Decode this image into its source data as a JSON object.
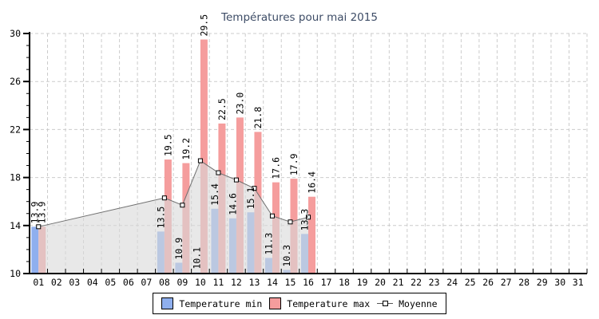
{
  "chart_data": {
    "type": "bar",
    "title": "Températures pour mai 2015",
    "x_labels": [
      "01",
      "02",
      "03",
      "04",
      "05",
      "06",
      "07",
      "08",
      "09",
      "10",
      "11",
      "12",
      "13",
      "14",
      "15",
      "16",
      "17",
      "18",
      "19",
      "20",
      "21",
      "22",
      "23",
      "24",
      "25",
      "26",
      "27",
      "28",
      "29",
      "30",
      "31"
    ],
    "ylim": [
      10,
      30
    ],
    "y_major_ticks": [
      10,
      14,
      18,
      22,
      26,
      30
    ],
    "y_minor_step": 1,
    "grid": "dashed",
    "legend_position": "bottom",
    "days_with_data": [
      1,
      8,
      9,
      10,
      11,
      12,
      13,
      14,
      15,
      16
    ],
    "series": [
      {
        "name": "Temperature min",
        "type": "bar",
        "color": "#8fafee",
        "values": [
          13.9,
          13.5,
          10.9,
          10.1,
          15.4,
          14.6,
          15.1,
          11.3,
          10.3,
          13.3
        ]
      },
      {
        "name": "Temperature max",
        "type": "bar",
        "color": "#f59d9d",
        "values": [
          13.9,
          19.5,
          19.2,
          29.5,
          22.5,
          23.0,
          21.8,
          17.6,
          17.9,
          16.4
        ]
      },
      {
        "name": "Moyenne",
        "type": "line",
        "color": "#707070",
        "marker": "white-square",
        "area_fill": "#d9d9d9",
        "values": [
          13.9,
          16.3,
          15.7,
          19.4,
          18.4,
          17.8,
          17.1,
          14.8,
          14.3,
          14.7
        ]
      }
    ],
    "colors": {
      "grid": "#cccccc",
      "axis": "#000000",
      "title": "#3d4c66",
      "bar_label": "#000000"
    }
  }
}
